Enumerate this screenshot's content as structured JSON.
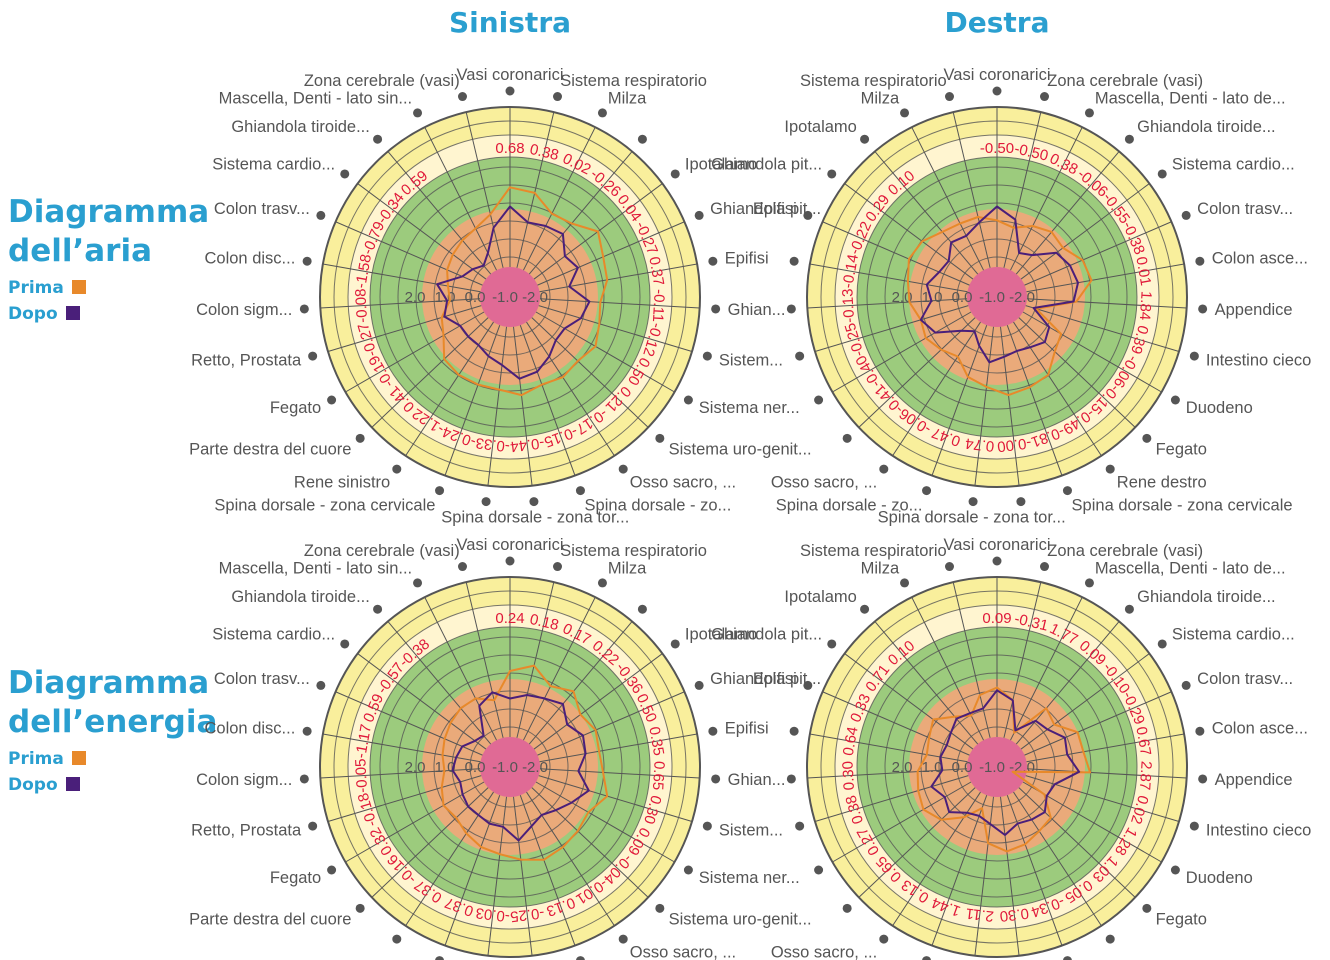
{
  "columns": [
    {
      "id": "sinistra",
      "title": "Sinistra"
    },
    {
      "id": "destra",
      "title": "Destra"
    }
  ],
  "rows": [
    {
      "id": "aria",
      "title_line1": "Diagramma",
      "title_line2": "dell’aria",
      "legend_prima": "Prima",
      "legend_dopo": "Dopo"
    },
    {
      "id": "energia",
      "title_line1": "Diagramma",
      "title_line2": "dell’energia",
      "legend_prima": "Prima",
      "legend_dopo": "Dopo"
    }
  ],
  "colors": {
    "prima": "#e8892a",
    "dopo": "#4a1f7a",
    "title": "#2a9fd0",
    "values": "#e0193a",
    "ring_yellow": "#f9ef9c",
    "ring_cream": "#fff5d0",
    "ring_green": "#9ccb7d",
    "ring_orange": "#eaaa7a",
    "center_pink": "#e06a95"
  },
  "scale_labels": [
    "2.0",
    "1.0",
    "0.0",
    "-1.0",
    "-2.0"
  ],
  "chart_data": [
    {
      "type": "radar",
      "title": "Sinistra",
      "row": "Diagramma dell’aria",
      "categories": [
        "Vasi coronarici",
        "Sistema respiratorio",
        "Milza",
        "",
        "Ipotalamo",
        "Ghiandola pit...",
        "Epifisi",
        "Ghian...",
        "Sistem...",
        "Sistema ner...",
        "Sistema uro-genit...",
        "Osso sacro, ...",
        "Spina dorsale - zo...",
        "Spina dorsale - zona tor...",
        "",
        "Spina dorsale - zona cervicale",
        "Rene sinistro",
        "Parte destra del cuore",
        "Fegato",
        "Retto, Prostata",
        "Colon sigm...",
        "Colon disc...",
        "Colon trasv...",
        "Sistema cardio...",
        "Ghiandola tiroide...",
        "Mascella, Denti - lato sin...",
        "Zona cerebrale (vasi)"
      ],
      "values": [
        "0.68",
        "0.38",
        "0.02",
        "-0.26",
        "0.04",
        "-0.27",
        "0.37",
        "-0.11",
        "-0.12",
        "0.50",
        "0.21",
        "-0.17",
        "-0.15",
        "-0.44",
        "-0.33",
        "-0.24",
        "-1.22",
        "0.41",
        "-0.19",
        "-0.27",
        "-0.08",
        "-1.58",
        "-0.79",
        "-0.34",
        "0.59",
        "",
        ""
      ],
      "series": [
        {
          "name": "Prima",
          "values": [
            -0.9,
            -0.8,
            -0.3,
            -0.4,
            -0.9,
            -0.6,
            -0.5,
            -0.2,
            -0.3,
            -0.5,
            -0.3,
            -0.4,
            -0.3,
            -0.5,
            -0.3,
            -0.3,
            -0.3,
            -0.2,
            0.3,
            0.5,
            0.9,
            0.8,
            0.6,
            0.5,
            0.4,
            0.3,
            0.0
          ]
        },
        {
          "name": "Dopo",
          "values": [
            -0.2,
            0.3,
            0.2,
            0.1,
            0.6,
            0.4,
            0.9,
            0.2,
            0.4,
            0.8,
            0.8,
            0.5,
            0.2,
            0.1,
            0.6,
            0.8,
            1.0,
            1.0,
            1.0,
            0.6,
            0.8,
            0.4,
            1.2,
            1.4,
            1.6,
            1.3,
            0.5
          ]
        }
      ]
    },
    {
      "type": "radar",
      "title": "Destra",
      "row": "Diagramma dell’aria",
      "categories": [
        "Vasi coronarici",
        "Zona cerebrale (vasi)",
        "Mascella, Denti - lato de...",
        "Ghiandola tiroide...",
        "Sistema cardio...",
        "Colon trasv...",
        "Colon asce...",
        "Appendice",
        "Intestino cieco",
        "Duodeno",
        "Fegato",
        "Rene destro",
        "Spina dorsale - zona cervicale",
        "",
        "Spina dorsale - zona tor...",
        "Spina dorsale - zo...",
        "Osso sacro, ...",
        "",
        "",
        "",
        "",
        "",
        "Epifisi",
        "Ghiandola pit...",
        "Ipotalamo",
        "Milza",
        "Sistema respiratorio"
      ],
      "values": [
        "-0.50",
        "-0.50",
        "0.38",
        "-0.06",
        "-0.55",
        "-0.38",
        "0.01",
        "1.84",
        "0.39",
        "-0.06",
        "-0.15",
        "-0.49",
        "-0.81",
        "-0.00",
        "0.74",
        "0.47",
        "-0.06",
        "-0.41",
        "-0.40",
        "-0.25",
        "-0.13",
        "-0.14",
        "-0.22",
        "0.29",
        "0.10",
        "",
        ""
      ],
      "series": [
        {
          "name": "Prima",
          "values": [
            0.3,
            0.5,
            0.2,
            0.0,
            0.1,
            -0.3,
            -0.4,
            0.2,
            1.6,
            0.4,
            0.2,
            -0.3,
            -0.4,
            -0.5,
            -0.2,
            0.0,
            0.5,
            0.3,
            0.1,
            0.2,
            -0.1,
            -0.2,
            -0.4,
            -0.3,
            0.0,
            0.1,
            0.1
          ]
        },
        {
          "name": "Dopo",
          "values": [
            -0.2,
            0.2,
            1.3,
            1.1,
            0.4,
            0.2,
            0.1,
            0.3,
            1.7,
            0.9,
            0.7,
            0.9,
            1.0,
            0.9,
            0.7,
            1.2,
            1.6,
            1.3,
            0.5,
            0.2,
            0.7,
            0.5,
            0.8,
            0.9,
            0.5,
            0.6,
            0.3
          ]
        }
      ]
    },
    {
      "type": "radar",
      "title": "Sinistra",
      "row": "Diagramma dell’energia",
      "categories": [
        "Vasi coronarici",
        "Sistema respiratorio",
        "Milza",
        "",
        "Ipotalamo",
        "Ghiandola pit...",
        "Epifisi",
        "Ghian...",
        "Sistem...",
        "Sistema ner...",
        "Sistema uro-genit...",
        "Osso sacro, ...",
        "",
        "",
        "",
        "",
        "",
        "Parte destra del cuore",
        "Fegato",
        "Retto, Prostata",
        "Colon sigm...",
        "Colon disc...",
        "Colon trasv...",
        "Sistema cardio...",
        "Ghiandola tiroide...",
        "Mascella, Denti - lato sin...",
        "Zona cerebrale (vasi)"
      ],
      "values": [
        "0.24",
        "0.18",
        "0.17",
        "0.22",
        "-0.36",
        "0.50",
        "0.35",
        "0.65",
        "0.30",
        "0.09",
        "-0.04",
        "-0.01",
        "0.13",
        "-0.25",
        "-0.03",
        "0.37",
        "0.37",
        "-0.16",
        "0.32",
        "-0.18",
        "-0.05",
        "-1.17",
        "0.59",
        "-0.57",
        "-0.38",
        "",
        ""
      ],
      "series": [
        {
          "name": "Prima",
          "values": [
            -0.4,
            -0.7,
            -0.2,
            -0.5,
            -0.1,
            -0.3,
            -0.2,
            -0.3,
            -0.6,
            -0.2,
            -0.3,
            -0.4,
            -0.5,
            -0.3,
            -0.1,
            0.0,
            0.2,
            0.4,
            0.3,
            0.5,
            0.7,
            0.6,
            0.5,
            0.4,
            0.3,
            0.3,
            0.6
          ]
        },
        {
          "name": "Dopo",
          "values": [
            0.6,
            0.4,
            0.3,
            0.1,
            0.5,
            0.2,
            0.3,
            0.6,
            0.1,
            0.5,
            0.8,
            1.0,
            0.8,
            0.4,
            0.9,
            0.9,
            1.0,
            1.0,
            1.1,
            1.2,
            1.0,
            1.1,
            1.2,
            1.5,
            1.6,
            0.6,
            0.3
          ]
        }
      ]
    },
    {
      "type": "radar",
      "title": "Destra",
      "row": "Diagramma dell’energia",
      "categories": [
        "Vasi coronarici",
        "Zona cerebrale (vasi)",
        "Mascella, Denti - lato de...",
        "Ghiandola tiroide...",
        "Sistema cardio...",
        "Colon trasv...",
        "Colon asce...",
        "Appendice",
        "Intestino cieco",
        "Duodeno",
        "Fegato",
        "",
        "",
        "",
        "",
        "",
        "Osso sacro, ...",
        "",
        "",
        "",
        "",
        "",
        "Epifisi",
        "Ghiandola pit...",
        "Ipotalamo",
        "Milza",
        "Sistema respiratorio"
      ],
      "values": [
        "0.09",
        "-0.31",
        "1.77",
        "0.09",
        "-0.10",
        "-0.29",
        "0.67",
        "2.87",
        "0.02",
        "1.28",
        "1.03",
        "0.05",
        "-0.34",
        "0.30",
        "2.11",
        "1.44",
        "0.13",
        "0.65",
        "0.27",
        "0.38",
        "0.30",
        "0.64",
        "0.33",
        "0.71",
        "0.10",
        "",
        ""
      ],
      "series": [
        {
          "name": "Prima",
          "values": [
            0.2,
            0.6,
            1.7,
            0.3,
            0.5,
            -0.1,
            -0.1,
            -0.3,
            2.5,
            1.1,
            0.4,
            0.3,
            0.1,
            0.0,
            0.3,
            1.5,
            0.9,
            0.3,
            0.0,
            0.1,
            0.2,
            0.5,
            0.4,
            0.2,
            0.7,
            1.0,
            0.4
          ]
        },
        {
          "name": "Dopo",
          "values": [
            0.3,
            0.6,
            1.6,
            0.9,
            0.8,
            0.4,
            0.5,
            0.1,
            0.9,
            1.0,
            0.7,
            0.8,
            0.9,
            0.6,
            1.0,
            1.2,
            1.1,
            0.7,
            0.9,
            0.6,
            1.1,
            1.0,
            1.1,
            1.0,
            0.8,
            0.9,
            0.9
          ]
        }
      ]
    }
  ]
}
